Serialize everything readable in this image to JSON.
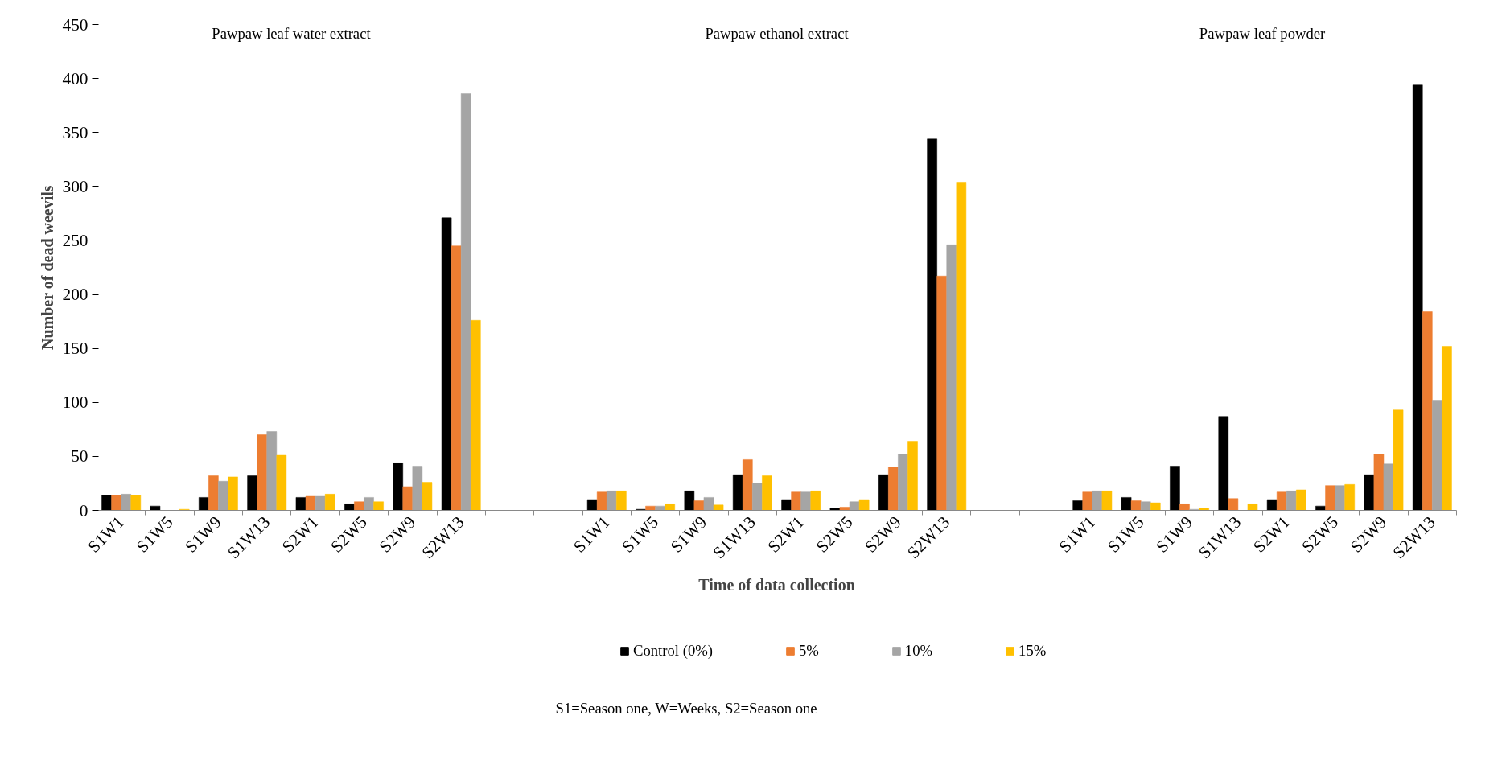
{
  "chart_data": {
    "type": "bar",
    "xlabel": "Time of data collection",
    "ylabel": "Number of dead weevils",
    "categories": [
      "S1W1",
      "S1W5",
      "S1W9",
      "S1W13",
      "S2W1",
      "S2W5",
      "S2W9",
      "S2W13",
      null,
      null,
      "S1W1",
      "S1W5",
      "S1W9",
      "S1W13",
      "S2W1",
      "S2W5",
      "S2W9",
      "S2W13",
      null,
      null,
      "S1W1",
      "S1W5",
      "S1W9",
      "S1W13",
      "S2W1",
      "S2W5",
      "S2W9",
      "S2W13"
    ],
    "series": [
      {
        "name": "Control (0%)",
        "color": "#000000",
        "values": [
          14,
          4,
          12,
          32,
          12,
          6,
          44,
          271,
          null,
          null,
          10,
          1,
          18,
          33,
          10,
          2,
          33,
          344,
          null,
          null,
          9,
          12,
          41,
          87,
          10,
          4,
          33,
          394
        ]
      },
      {
        "name": "5%",
        "color": "#ed7d31",
        "values": [
          14,
          0,
          32,
          70,
          13,
          8,
          22,
          245,
          null,
          null,
          17,
          4,
          9,
          47,
          17,
          3,
          40,
          217,
          null,
          null,
          17,
          9,
          6,
          11,
          17,
          23,
          52,
          184
        ]
      },
      {
        "name": "10%",
        "color": "#a5a5a5",
        "values": [
          15,
          0,
          27,
          73,
          13,
          12,
          41,
          386,
          null,
          null,
          18,
          4,
          12,
          25,
          17,
          8,
          52,
          246,
          null,
          null,
          18,
          8,
          1,
          0,
          18,
          23,
          43,
          102
        ]
      },
      {
        "name": "15%",
        "color": "#ffc000",
        "values": [
          14,
          1,
          31,
          51,
          15,
          8,
          26,
          176,
          null,
          null,
          18,
          6,
          5,
          32,
          18,
          10,
          64,
          304,
          null,
          null,
          18,
          7,
          2,
          6,
          19,
          24,
          93,
          152
        ]
      }
    ],
    "ylim": [
      0,
      450
    ],
    "yticks": [
      0,
      50,
      100,
      150,
      200,
      250,
      300,
      350,
      400,
      450
    ],
    "grid": false,
    "legend": "bottom",
    "annotations": [
      "Pawpaw leaf water extract",
      "Pawpaw ethanol extract",
      "Pawpaw leaf powder",
      "S1=Season one, W=Weeks, S2=Season one"
    ]
  }
}
